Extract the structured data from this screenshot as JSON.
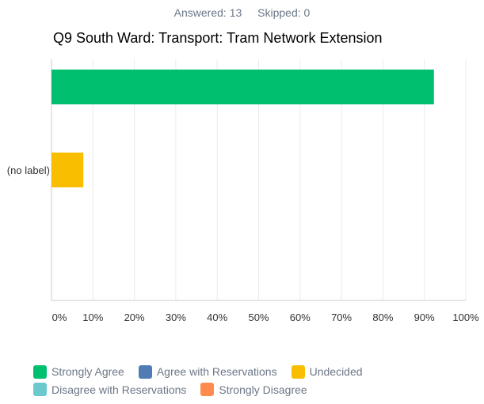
{
  "header": {
    "answered": "Answered: 13",
    "skipped": "Skipped: 0"
  },
  "chart_data": {
    "type": "bar",
    "orientation": "horizontal",
    "title": "Q9 South Ward: Transport: Tram Network Extension",
    "categories": [
      "(no label)"
    ],
    "series": [
      {
        "name": "Strongly Agree",
        "color": "#00bf6f",
        "values": [
          92.31
        ]
      },
      {
        "name": "Agree with Reservations",
        "color": "#507cb6",
        "values": [
          0
        ]
      },
      {
        "name": "Undecided",
        "color": "#f9be00",
        "values": [
          7.69
        ]
      },
      {
        "name": "Disagree with Reservations",
        "color": "#6bc8cd",
        "values": [
          0
        ]
      },
      {
        "name": "Strongly Disagree",
        "color": "#ff8b4f",
        "values": [
          0
        ]
      }
    ],
    "xlim": [
      0,
      100
    ],
    "xticks": [
      "0%",
      "10%",
      "20%",
      "30%",
      "40%",
      "50%",
      "60%",
      "70%",
      "80%",
      "90%",
      "100%"
    ],
    "grid": true,
    "legend_position": "bottom-left"
  }
}
